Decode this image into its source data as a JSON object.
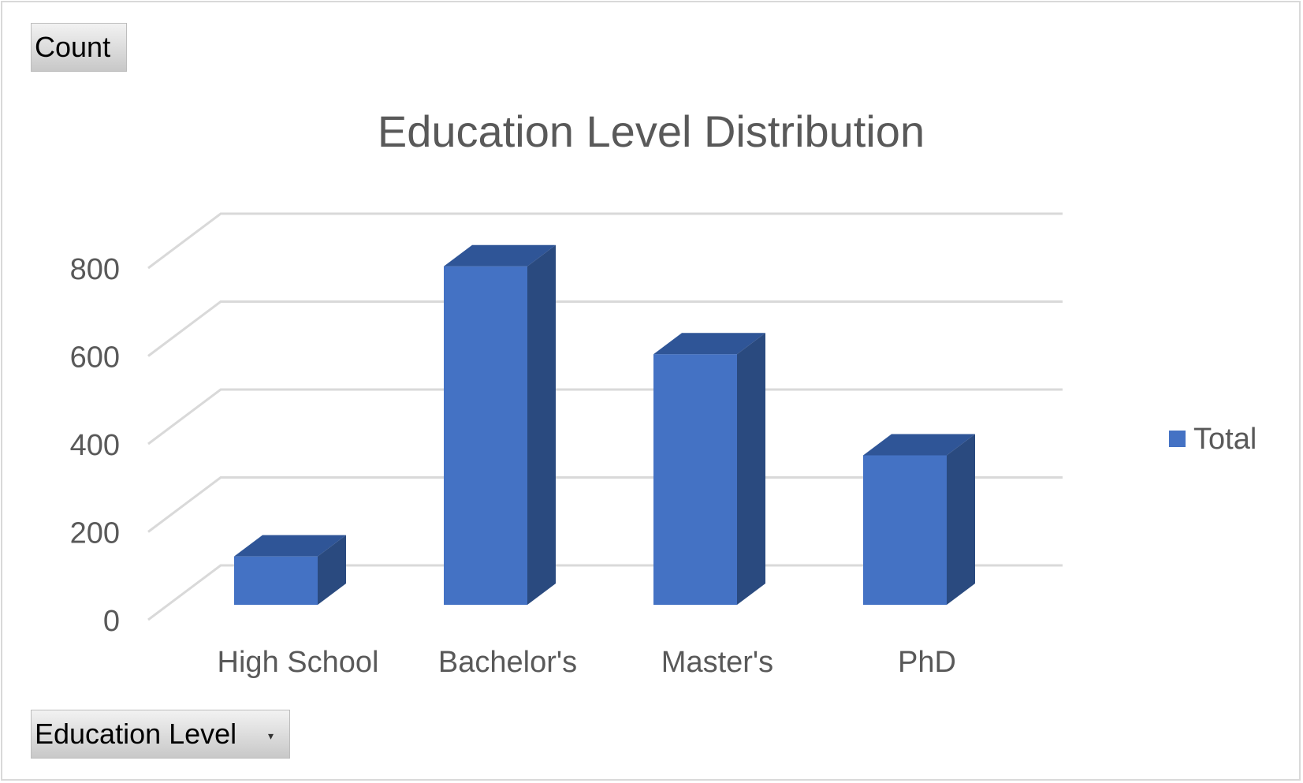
{
  "buttons": {
    "values_field": "Count",
    "axis_field": "Education Level"
  },
  "icons": {
    "axis_field_dropdown": "dropdown-arrow-icon"
  },
  "colors": {
    "bar_front": "#4472c4",
    "bar_top": "#2f5597",
    "bar_side": "#2a4a7f",
    "gridline": "#d9d9d9",
    "text": "#595959"
  },
  "chart_data": {
    "type": "bar",
    "style": "3d-column",
    "title": "Education Level Distribution",
    "categories": [
      "High School",
      "Bachelor's",
      "Master's",
      "PhD"
    ],
    "series": [
      {
        "name": "Total",
        "values": [
          110,
          770,
          570,
          340
        ]
      }
    ],
    "ylim": [
      0,
      800
    ],
    "yticks": [
      0,
      200,
      400,
      600,
      800
    ],
    "xlabel": "",
    "ylabel": "",
    "grid": true,
    "legend": "right"
  }
}
